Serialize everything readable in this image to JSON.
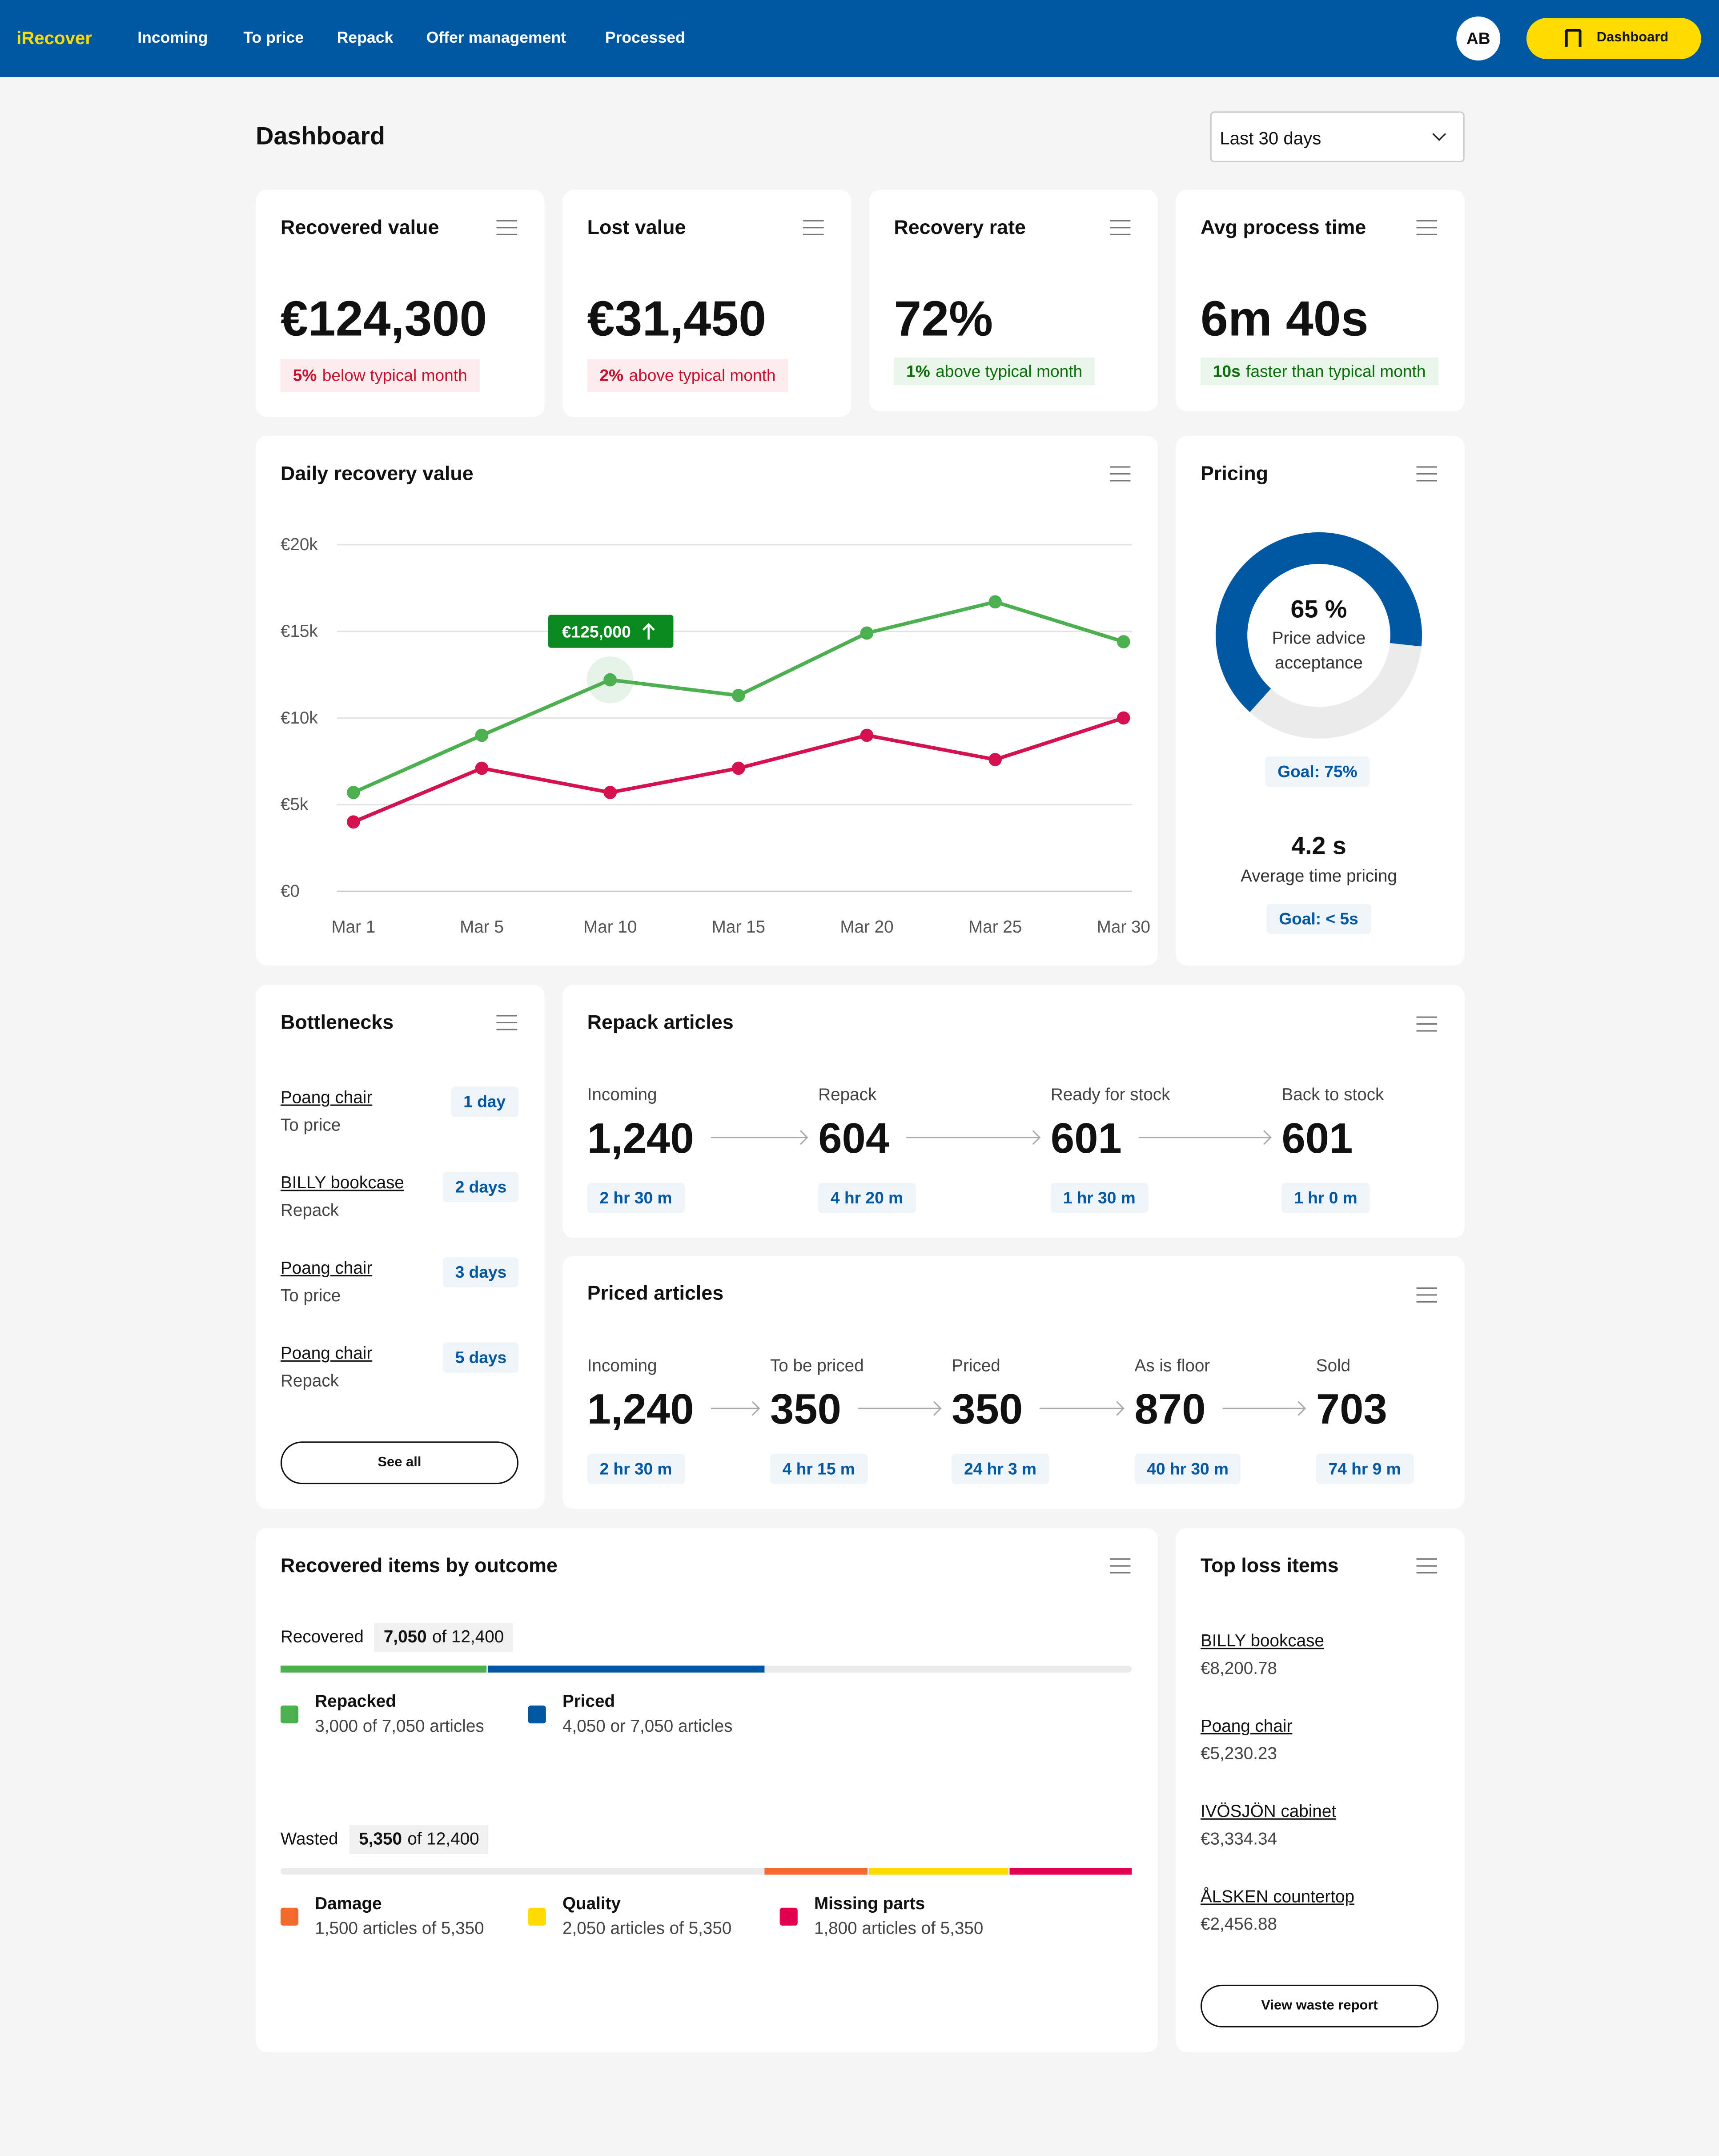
{
  "nav": {
    "brand": "iRecover",
    "links": [
      "Incoming",
      "To price",
      "Repack",
      "Offer management",
      "Processed"
    ],
    "avatar": "AB",
    "button": "Dashboard"
  },
  "header": {
    "title": "Dashboard",
    "period": "Last 30 days"
  },
  "kpis": [
    {
      "title": "Recovered value",
      "value": "€124,300",
      "delta": "5%",
      "note": "below typical month",
      "tone": "negative"
    },
    {
      "title": "Lost value",
      "value": "€31,450",
      "delta": "2%",
      "note": "above typical month",
      "tone": "negative"
    },
    {
      "title": "Recovery rate",
      "value": "72%",
      "delta": "1%",
      "note": "above typical month",
      "tone": "positive"
    },
    {
      "title": "Avg process time",
      "value": "6m 40s",
      "delta": "10s",
      "note": "faster than typical month",
      "tone": "positive"
    }
  ],
  "chart_data": {
    "type": "line",
    "title": "Daily recovery value",
    "categories": [
      "Mar 1",
      "Mar 5",
      "Mar 10",
      "Mar 15",
      "Mar 20",
      "Mar 25",
      "Mar 30"
    ],
    "series": [
      {
        "color": "#4caf50",
        "values": [
          5700,
          9000,
          12200,
          11300,
          14900,
          16700,
          14400
        ]
      },
      {
        "color": "#d6114f",
        "values": [
          4000,
          7100,
          5700,
          7100,
          9000,
          7600,
          10000
        ]
      }
    ],
    "ylim": [
      0,
      20000
    ],
    "yticks": [
      {
        "value": 0,
        "label": "€0"
      },
      {
        "value": 5000,
        "label": "€5k"
      },
      {
        "value": 10000,
        "label": "€10k"
      },
      {
        "value": 15000,
        "label": "€15k"
      },
      {
        "value": 20000,
        "label": "€20k"
      }
    ],
    "grid": true,
    "annotation": {
      "text": "€125,000",
      "x": "Mar 10"
    }
  },
  "pricing": {
    "title": "Pricing",
    "value": 65,
    "value_label": "65 %",
    "caption": "Price advice acceptance",
    "goal": "Goal: 75%",
    "time": "4.2 s",
    "time_caption": "Average time pricing",
    "time_goal": "Goal: < 5s"
  },
  "bottlenecks": {
    "title": "Bottlenecks",
    "items": [
      {
        "name": "Poang chair",
        "stage": "To price",
        "duration": "1 day"
      },
      {
        "name": "BILLY bookcase",
        "stage": "Repack",
        "duration": "2 days"
      },
      {
        "name": "Poang chair",
        "stage": "To price",
        "duration": "3 days"
      },
      {
        "name": "Poang chair",
        "stage": "Repack",
        "duration": "5 days"
      }
    ],
    "button": "See all"
  },
  "repack": {
    "title": "Repack articles",
    "stages": [
      {
        "label": "Incoming",
        "count": "1,240",
        "time": "2 hr 30 m"
      },
      {
        "label": "Repack",
        "count": "604",
        "time": "4 hr 20 m"
      },
      {
        "label": "Ready for stock",
        "count": "601",
        "time": "1 hr 30 m"
      },
      {
        "label": "Back to stock",
        "count": "601",
        "time": "1 hr 0 m"
      }
    ]
  },
  "priced": {
    "title": "Priced articles",
    "stages": [
      {
        "label": "Incoming",
        "count": "1,240",
        "time": "2 hr 30 m"
      },
      {
        "label": "To be priced",
        "count": "350",
        "time": "4 hr 15 m"
      },
      {
        "label": "Priced",
        "count": "350",
        "time": "24 hr 3 m"
      },
      {
        "label": "As is floor",
        "count": "870",
        "time": "40 hr 30 m"
      },
      {
        "label": "Sold",
        "count": "703",
        "time": "74 hr 9 m"
      }
    ]
  },
  "outcomes": {
    "title": "Recovered items by outcome",
    "total": 12400,
    "groups": [
      {
        "label": "Recovered",
        "count": "7,050",
        "of": "of 12,400",
        "align": "left",
        "segments": [
          {
            "name": "Repacked",
            "value": 3000,
            "label": "3,000 of 7,050 articles",
            "color": "#4caf50"
          },
          {
            "name": "Priced",
            "value": 4050,
            "label": "4,050 or 7,050 articles",
            "color": "#0058a3"
          }
        ]
      },
      {
        "label": "Wasted",
        "count": "5,350",
        "of": "of 12,400",
        "align": "right",
        "segments": [
          {
            "name": "Damage",
            "value": 1500,
            "label": "1,500 articles of 5,350",
            "color": "#f26a2e"
          },
          {
            "name": "Quality",
            "value": 2050,
            "label": "2,050 articles of 5,350",
            "color": "#ffdb00"
          },
          {
            "name": "Missing parts",
            "value": 1800,
            "label": "1,800 articles of 5,350",
            "color": "#e0004d"
          }
        ]
      }
    ]
  },
  "top_loss": {
    "title": "Top loss items",
    "items": [
      {
        "name": "BILLY bookcase",
        "value": "€8,200.78"
      },
      {
        "name": "Poang chair",
        "value": "€5,230.23"
      },
      {
        "name": "IVÖSJÖN cabinet",
        "value": "€3,334.34"
      },
      {
        "name": "ÅLSKEN countertop",
        "value": "€2,456.88"
      }
    ],
    "button": "View waste report"
  }
}
